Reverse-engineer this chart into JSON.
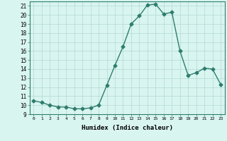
{
  "x": [
    0,
    1,
    2,
    3,
    4,
    5,
    6,
    7,
    8,
    9,
    10,
    11,
    12,
    13,
    14,
    15,
    16,
    17,
    18,
    19,
    20,
    21,
    22,
    23
  ],
  "y": [
    10.5,
    10.3,
    10.0,
    9.8,
    9.8,
    9.6,
    9.6,
    9.7,
    10.0,
    12.2,
    14.4,
    16.5,
    19.0,
    19.9,
    21.1,
    21.2,
    20.1,
    20.3,
    16.0,
    13.3,
    13.6,
    14.1,
    14.0,
    12.3
  ],
  "xlabel": "Humidex (Indice chaleur)",
  "ylim": [
    9,
    21.5
  ],
  "xlim": [
    -0.5,
    23.5
  ],
  "yticks": [
    9,
    10,
    11,
    12,
    13,
    14,
    15,
    16,
    17,
    18,
    19,
    20,
    21
  ],
  "xticks": [
    0,
    1,
    2,
    3,
    4,
    5,
    6,
    7,
    8,
    9,
    10,
    11,
    12,
    13,
    14,
    15,
    16,
    17,
    18,
    19,
    20,
    21,
    22,
    23
  ],
  "line_color": "#2e7d6e",
  "marker_color": "#2e7d6e",
  "bg_color": "#d9f5f0",
  "grid_color": "#b8ddd8",
  "title": ""
}
